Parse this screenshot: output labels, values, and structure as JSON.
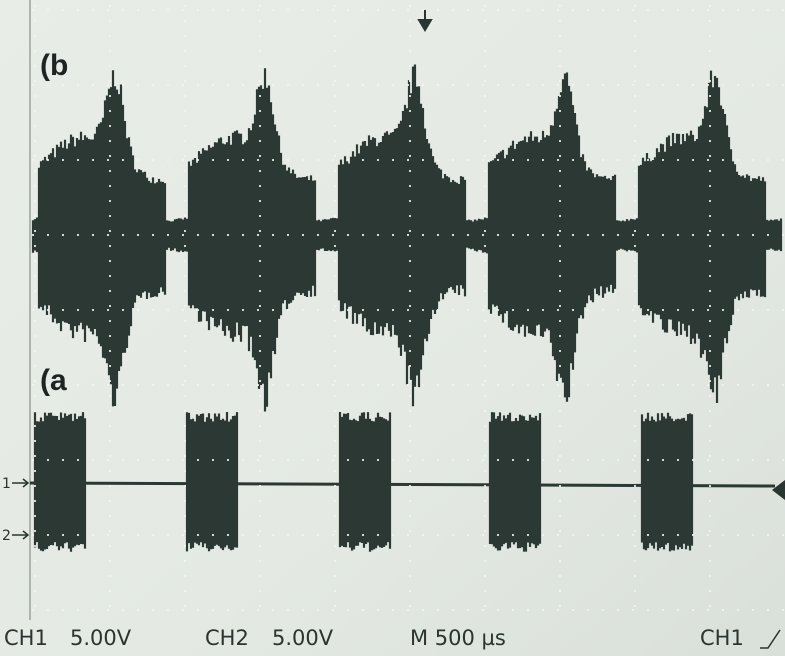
{
  "labels": {
    "b": "(b",
    "a": "(a"
  },
  "markers": {
    "ch1": "1",
    "ch2": "2"
  },
  "status": {
    "ch1": "CH1",
    "ch1_scale": "5.00V",
    "ch2": "CH2",
    "ch2_scale": "5.00V",
    "timebase": "M 500 µs",
    "trigger_source": "CH1"
  }
}
